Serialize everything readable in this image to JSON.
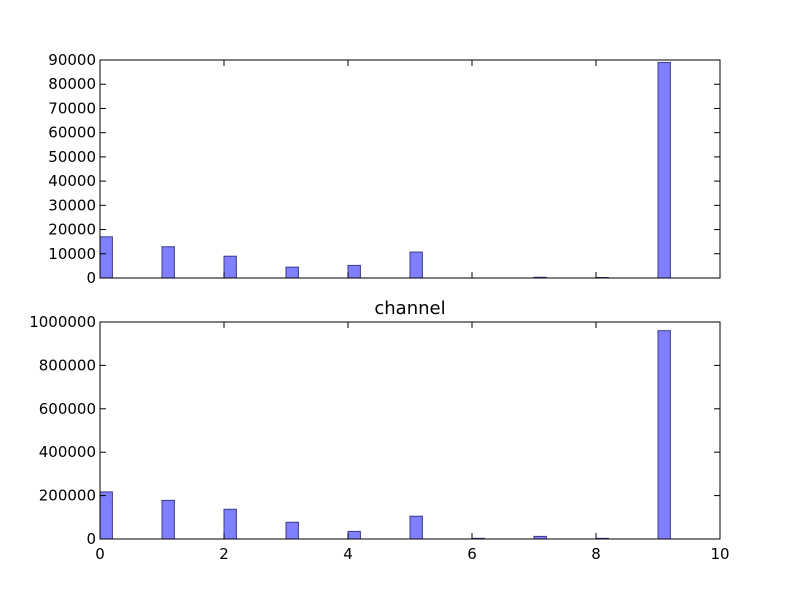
{
  "chart_data": [
    {
      "type": "bar",
      "title": "",
      "xlabel": "",
      "ylabel": "",
      "xlim": [
        0,
        10
      ],
      "ylim": [
        0,
        90000
      ],
      "bar_width": 0.2,
      "x": [
        0,
        1,
        2,
        3,
        4,
        5,
        6,
        7,
        8,
        9
      ],
      "values": [
        17000,
        12900,
        9000,
        4500,
        5200,
        10700,
        0,
        300,
        200,
        89000
      ],
      "yticks": [
        0,
        10000,
        20000,
        30000,
        40000,
        50000,
        60000,
        70000,
        80000,
        90000
      ],
      "ytick_labels": [
        "0",
        "10000",
        "20000",
        "30000",
        "40000",
        "50000",
        "60000",
        "70000",
        "80000",
        "90000"
      ],
      "xticks": [
        0,
        2,
        4,
        6,
        8,
        10
      ],
      "xtick_labels": [],
      "grid": false,
      "color": "#8080ff"
    },
    {
      "type": "bar",
      "title": "channel",
      "xlabel": "",
      "ylabel": "",
      "xlim": [
        0,
        10
      ],
      "ylim": [
        0,
        1000000
      ],
      "bar_width": 0.2,
      "x": [
        0,
        1,
        2,
        3,
        4,
        5,
        6,
        7,
        8,
        9
      ],
      "values": [
        217000,
        178000,
        137000,
        77000,
        35000,
        105000,
        3000,
        12000,
        3000,
        960000
      ],
      "yticks": [
        0,
        200000,
        400000,
        600000,
        800000,
        1000000
      ],
      "ytick_labels": [
        "0",
        "200000",
        "400000",
        "600000",
        "800000",
        "1000000"
      ],
      "xticks": [
        0,
        2,
        4,
        6,
        8,
        10
      ],
      "xtick_labels": [
        "0",
        "2",
        "4",
        "6",
        "8",
        "10"
      ],
      "grid": false,
      "color": "#8080ff"
    }
  ]
}
